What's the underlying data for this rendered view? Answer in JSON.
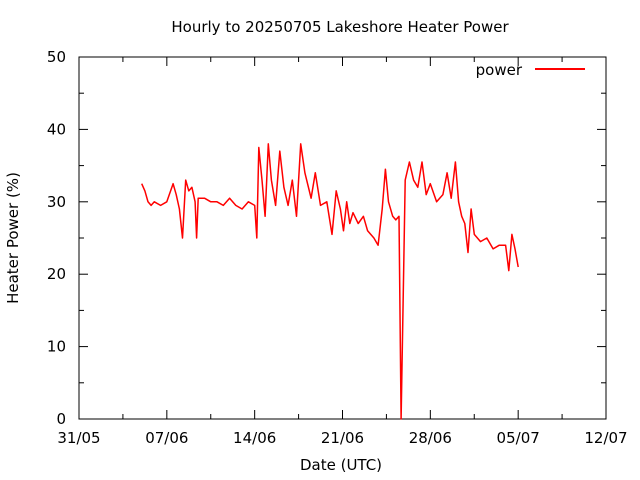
{
  "chart_data": {
    "type": "line",
    "title": "Hourly to 20250705 Lakeshore Heater Power",
    "xlabel": "Date (UTC)",
    "ylabel": "Heater Power (%)",
    "xlim": [
      "2025-05-31",
      "2025-07-12"
    ],
    "ylim": [
      0,
      50
    ],
    "x_ticks": [
      {
        "date": "2025-05-31",
        "label": "31/05"
      },
      {
        "date": "2025-06-07",
        "label": "07/06"
      },
      {
        "date": "2025-06-14",
        "label": "14/06"
      },
      {
        "date": "2025-06-21",
        "label": "21/06"
      },
      {
        "date": "2025-06-28",
        "label": "28/06"
      },
      {
        "date": "2025-07-05",
        "label": "05/07"
      },
      {
        "date": "2025-07-12",
        "label": "12/07"
      }
    ],
    "y_ticks": [
      0,
      10,
      20,
      30,
      40,
      50
    ],
    "legend": {
      "position": "top-right"
    },
    "grid": false,
    "series": [
      {
        "name": "power",
        "color": "#ff0000",
        "points": [
          [
            "2025-06-05T00:00",
            32.5
          ],
          [
            "2025-06-05T06:00",
            31.5
          ],
          [
            "2025-06-05T12:00",
            30.0
          ],
          [
            "2025-06-05T18:00",
            29.5
          ],
          [
            "2025-06-06T00:00",
            30.0
          ],
          [
            "2025-06-06T12:00",
            29.5
          ],
          [
            "2025-06-07T00:00",
            30.0
          ],
          [
            "2025-06-07T12:00",
            32.5
          ],
          [
            "2025-06-07T18:00",
            31.0
          ],
          [
            "2025-06-08T00:00",
            29.0
          ],
          [
            "2025-06-08T06:00",
            25.0
          ],
          [
            "2025-06-08T12:00",
            33.0
          ],
          [
            "2025-06-08T18:00",
            31.5
          ],
          [
            "2025-06-09T00:00",
            32.0
          ],
          [
            "2025-06-09T06:00",
            30.0
          ],
          [
            "2025-06-09T09:00",
            25.0
          ],
          [
            "2025-06-09T12:00",
            30.5
          ],
          [
            "2025-06-10T00:00",
            30.5
          ],
          [
            "2025-06-10T12:00",
            30.0
          ],
          [
            "2025-06-11T00:00",
            30.0
          ],
          [
            "2025-06-11T12:00",
            29.5
          ],
          [
            "2025-06-12T00:00",
            30.5
          ],
          [
            "2025-06-12T12:00",
            29.5
          ],
          [
            "2025-06-13T00:00",
            29.0
          ],
          [
            "2025-06-13T12:00",
            30.0
          ],
          [
            "2025-06-14T00:00",
            29.5
          ],
          [
            "2025-06-14T04:00",
            25.0
          ],
          [
            "2025-06-14T08:00",
            37.5
          ],
          [
            "2025-06-14T14:00",
            33.0
          ],
          [
            "2025-06-14T20:00",
            28.0
          ],
          [
            "2025-06-15T02:00",
            38.0
          ],
          [
            "2025-06-15T08:00",
            33.0
          ],
          [
            "2025-06-15T16:00",
            29.5
          ],
          [
            "2025-06-16T00:00",
            37.0
          ],
          [
            "2025-06-16T08:00",
            32.0
          ],
          [
            "2025-06-16T16:00",
            29.5
          ],
          [
            "2025-06-17T00:00",
            33.0
          ],
          [
            "2025-06-17T08:00",
            28.0
          ],
          [
            "2025-06-17T16:00",
            38.0
          ],
          [
            "2025-06-18T00:00",
            34.0
          ],
          [
            "2025-06-18T12:00",
            30.5
          ],
          [
            "2025-06-18T20:00",
            34.0
          ],
          [
            "2025-06-19T06:00",
            29.5
          ],
          [
            "2025-06-19T18:00",
            30.0
          ],
          [
            "2025-06-20T04:00",
            25.5
          ],
          [
            "2025-06-20T12:00",
            31.5
          ],
          [
            "2025-06-20T20:00",
            29.0
          ],
          [
            "2025-06-21T02:00",
            26.0
          ],
          [
            "2025-06-21T08:00",
            30.0
          ],
          [
            "2025-06-21T14:00",
            27.0
          ],
          [
            "2025-06-21T20:00",
            28.5
          ],
          [
            "2025-06-22T06:00",
            27.0
          ],
          [
            "2025-06-22T16:00",
            28.0
          ],
          [
            "2025-06-23T00:00",
            26.0
          ],
          [
            "2025-06-23T12:00",
            25.0
          ],
          [
            "2025-06-23T20:00",
            24.0
          ],
          [
            "2025-06-24T04:00",
            29.0
          ],
          [
            "2025-06-24T10:00",
            34.5
          ],
          [
            "2025-06-24T16:00",
            30.0
          ],
          [
            "2025-06-25T00:00",
            28.0
          ],
          [
            "2025-06-25T06:00",
            27.5
          ],
          [
            "2025-06-25T12:00",
            28.0
          ],
          [
            "2025-06-25T16:00",
            0.0
          ],
          [
            "2025-06-25T20:00",
            16.0
          ],
          [
            "2025-06-26T00:00",
            33.0
          ],
          [
            "2025-06-26T08:00",
            35.5
          ],
          [
            "2025-06-26T16:00",
            33.0
          ],
          [
            "2025-06-27T00:00",
            32.0
          ],
          [
            "2025-06-27T08:00",
            35.5
          ],
          [
            "2025-06-27T16:00",
            31.0
          ],
          [
            "2025-06-28T00:00",
            32.5
          ],
          [
            "2025-06-28T12:00",
            30.0
          ],
          [
            "2025-06-29T00:00",
            31.0
          ],
          [
            "2025-06-29T08:00",
            34.0
          ],
          [
            "2025-06-29T16:00",
            30.5
          ],
          [
            "2025-06-30T00:00",
            35.5
          ],
          [
            "2025-06-30T06:00",
            30.0
          ],
          [
            "2025-06-30T12:00",
            28.0
          ],
          [
            "2025-06-30T18:00",
            27.0
          ],
          [
            "2025-07-01T00:00",
            23.0
          ],
          [
            "2025-07-01T06:00",
            29.0
          ],
          [
            "2025-07-01T12:00",
            25.5
          ],
          [
            "2025-07-02T00:00",
            24.5
          ],
          [
            "2025-07-02T12:00",
            25.0
          ],
          [
            "2025-07-03T00:00",
            23.5
          ],
          [
            "2025-07-03T12:00",
            24.0
          ],
          [
            "2025-07-04T00:00",
            24.0
          ],
          [
            "2025-07-04T06:00",
            20.5
          ],
          [
            "2025-07-04T12:00",
            25.5
          ],
          [
            "2025-07-04T18:00",
            23.5
          ],
          [
            "2025-07-05T00:00",
            21.0
          ]
        ]
      }
    ]
  }
}
